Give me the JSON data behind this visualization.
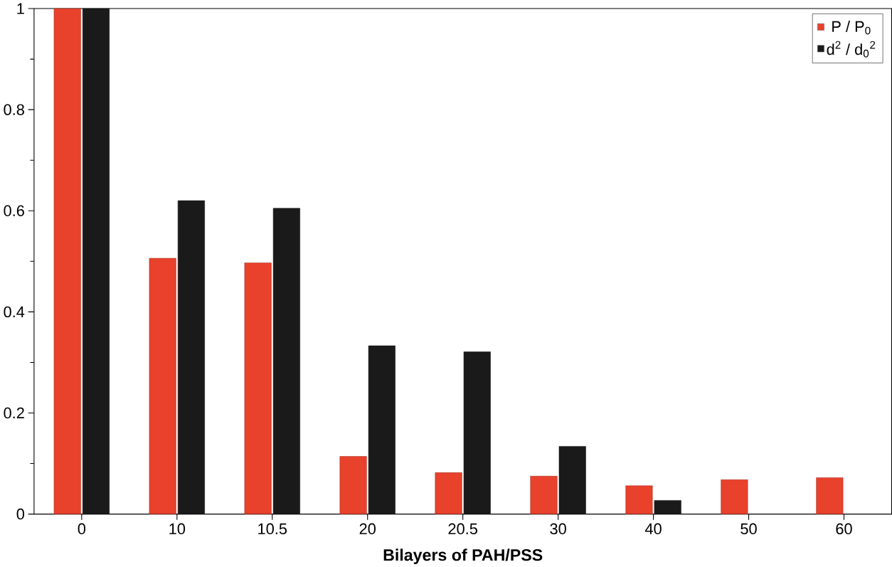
{
  "chart_data": {
    "type": "bar",
    "xlabel": "Bilayers of PAH/PSS",
    "categories": [
      "0",
      "10",
      "10.5",
      "20",
      "20.5",
      "30",
      "40",
      "50",
      "60"
    ],
    "series": [
      {
        "name": "P / P$_{0}$",
        "color": "#e8412c",
        "values": [
          1.0,
          0.506,
          0.497,
          0.114,
          0.082,
          0.075,
          0.056,
          0.068,
          0.072
        ]
      },
      {
        "name": "d$^{2}$ / d$_{0}$$^{2}$",
        "color": "#1a1a1a",
        "values": [
          1.0,
          0.62,
          0.605,
          0.333,
          0.321,
          0.134,
          0.027,
          null,
          null
        ]
      }
    ],
    "ylim": [
      0,
      1
    ],
    "yticks": [
      0,
      0.2,
      0.4,
      0.6,
      0.8,
      1
    ],
    "grid": false,
    "legend": "top right"
  }
}
